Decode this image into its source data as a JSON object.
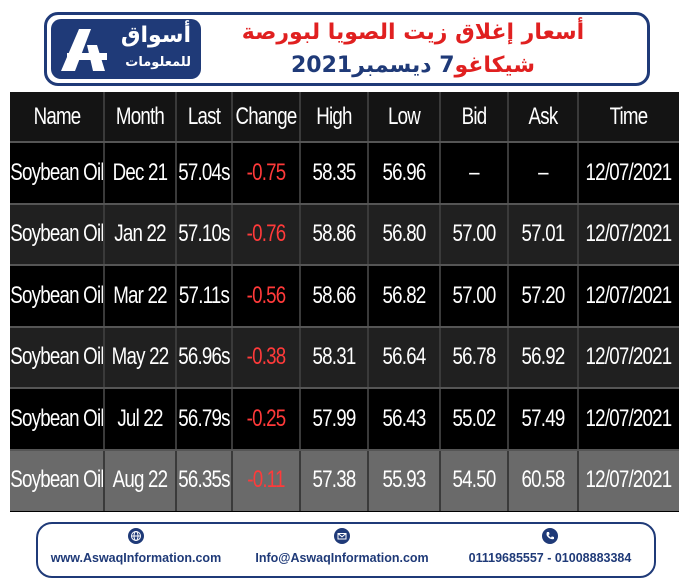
{
  "header": {
    "logo_line1": "أسواق",
    "logo_line2": "للمعلومات",
    "title_line1": "أسعار إغلاق زيت الصويا لبورصة",
    "title_line2_a": "شيكاغو",
    "title_line2_b": "7 ديسمبر",
    "title_line2_c": "2021",
    "colors": {
      "navy": "#1f3a78",
      "red": "#e02020"
    }
  },
  "table": {
    "columns": [
      "Name",
      "Month",
      "Last",
      "Change",
      "High",
      "Low",
      "Bid",
      "Ask",
      "Time"
    ],
    "rows": [
      [
        "Soybean Oil",
        "Dec 21",
        "57.04s",
        "-0.75",
        "58.35",
        "56.96",
        "–",
        "–",
        "12/07/2021"
      ],
      [
        "Soybean Oil",
        "Jan 22",
        "57.10s",
        "-0.76",
        "58.86",
        "56.80",
        "57.00",
        "57.01",
        "12/07/2021"
      ],
      [
        "Soybean Oil",
        "Mar 22",
        "57.11s",
        "-0.56",
        "58.66",
        "56.82",
        "57.00",
        "57.20",
        "12/07/2021"
      ],
      [
        "Soybean Oil",
        "May 22",
        "56.96s",
        "-0.38",
        "58.31",
        "56.64",
        "56.78",
        "56.92",
        "12/07/2021"
      ],
      [
        "Soybean Oil",
        "Jul 22",
        "56.79s",
        "-0.25",
        "57.99",
        "56.43",
        "55.02",
        "57.49",
        "12/07/2021"
      ],
      [
        "Soybean Oil",
        "Aug 22",
        "56.35s",
        "-0.11",
        "57.38",
        "55.93",
        "54.50",
        "60.58",
        "12/07/2021"
      ]
    ],
    "change_color": "#ff3a3a"
  },
  "footer": {
    "website": "www.AswaqInformation.com",
    "email": "Info@AswaqInformation.com",
    "phones": "01119685557 - 01008883384",
    "icons": [
      "globe-icon",
      "mail-icon",
      "phone-icon"
    ]
  }
}
